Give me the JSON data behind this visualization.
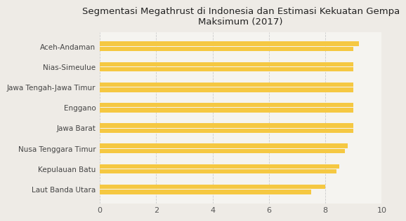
{
  "title": "Segmentasi Megathrust di Indonesia dan Estimasi Kekuatan Gempa\nMaksimum (2017)",
  "categories": [
    "Aceh-Andaman",
    "Nias-Simeulue",
    "Jawa Tengah-Jawa Timur",
    "Enggano",
    "Jawa Barat",
    "Nusa Tenggara Timur",
    "Kepulauan Batu",
    "Laut Banda Utara"
  ],
  "values_top": [
    9.2,
    9.0,
    9.0,
    9.0,
    9.0,
    8.8,
    8.5,
    8.0
  ],
  "values_bottom": [
    9.0,
    9.0,
    9.0,
    9.0,
    9.0,
    8.7,
    8.4,
    7.5
  ],
  "bar_color": "#F5C842",
  "background_color": "#eeebe6",
  "plot_bg_color": "#f5f4f0",
  "grid_color": "#cccccc",
  "xlim": [
    0,
    10
  ],
  "xticks": [
    0,
    2,
    4,
    6,
    8,
    10
  ],
  "title_fontsize": 9.5,
  "label_fontsize": 7.5,
  "tick_fontsize": 8
}
